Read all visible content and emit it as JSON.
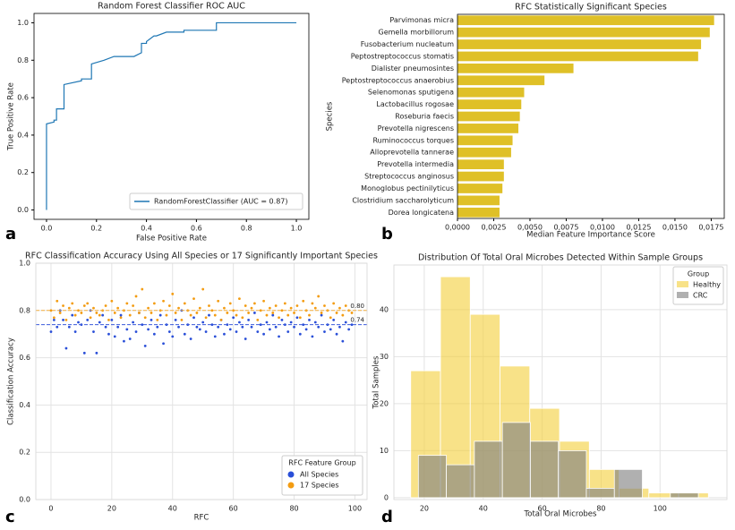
{
  "chart_data": [
    {
      "type": "line",
      "title": "Random Forest Classifier ROC AUC",
      "xlabel": "False Positive Rate",
      "ylabel": "True Positive Rate",
      "panel_label": "a",
      "xlim": [
        -0.05,
        1.05
      ],
      "ylim": [
        -0.05,
        1.05
      ],
      "xticks": [
        {
          "value": 0,
          "label": "0.0"
        },
        0.2,
        0.4,
        0.6,
        0.8,
        {
          "value": 1,
          "label": "1.0"
        }
      ],
      "yticks": [
        {
          "value": 0,
          "label": "0.0"
        },
        0.2,
        0.4,
        0.6,
        0.8,
        {
          "value": 1,
          "label": "1.0"
        }
      ],
      "grid": false,
      "legend": "lower right",
      "series": [
        {
          "name": "RandomForestClassifier (AUC = 0.87)",
          "color": "#1f77b4",
          "x": [
            0,
            0,
            0.03,
            0.03,
            0.04,
            0.04,
            0.07,
            0.07,
            0.14,
            0.14,
            0.18,
            0.18,
            0.23,
            0.27,
            0.35,
            0.38,
            0.38,
            0.4,
            0.4,
            0.43,
            0.44,
            0.48,
            0.48,
            0.55,
            0.55,
            0.68,
            0.68,
            1.0
          ],
          "values": [
            0,
            0.46,
            0.47,
            0.48,
            0.48,
            0.54,
            0.54,
            0.67,
            0.69,
            0.7,
            0.7,
            0.78,
            0.8,
            0.82,
            0.82,
            0.84,
            0.89,
            0.89,
            0.9,
            0.93,
            0.93,
            0.95,
            0.95,
            0.95,
            0.96,
            0.96,
            1.0,
            1.0
          ]
        }
      ]
    },
    {
      "type": "hbar",
      "title": "RFC Statistically Significant Species",
      "xlabel": "Median Feature Importance Score",
      "ylabel": "Species",
      "panel_label": "b",
      "categories": [
        "Parvimonas micra",
        "Gemella morbillorum",
        "Fusobacterium nucleatum",
        "Peptostreptococcus stomatis",
        "Dialister pneumosintes",
        "Peptostreptococcus anaerobius",
        "Selenomonas sputigena",
        "Lactobacillus rogosae",
        "Roseburia faecis",
        "Prevotella nigrescens",
        "Ruminococcus torques",
        "Alloprevotella tannerae",
        "Prevotella intermedia",
        "Streptococcus anginosus",
        "Monoglobus pectinilyticus",
        "Clostridium saccharolyticum",
        "Dorea longicatena"
      ],
      "values": [
        0.0177,
        0.0174,
        0.0168,
        0.0166,
        0.008,
        0.006,
        0.0046,
        0.0044,
        0.0043,
        0.0042,
        0.0038,
        0.0037,
        0.0032,
        0.0032,
        0.0031,
        0.0029,
        0.0029
      ],
      "color": "#dfc027",
      "xlim": [
        0,
        0.0184
      ],
      "grid": false,
      "xticks": [
        {
          "value": 0,
          "label": "0,0000"
        },
        {
          "value": 0.0025,
          "label": "0,0025"
        },
        {
          "value": 0.005,
          "label": "0,0050"
        },
        {
          "value": 0.0075,
          "label": "0,0075"
        },
        {
          "value": 0.01,
          "label": "0,0100"
        },
        {
          "value": 0.0125,
          "label": "0,0125"
        },
        {
          "value": 0.015,
          "label": "0,0150"
        },
        {
          "value": 0.0175,
          "label": "0,0175"
        }
      ]
    },
    {
      "type": "scatter",
      "title": "RFC Classification Accuracy Using All Species or 17 Significantly Important Species",
      "xlabel": "RFC",
      "ylabel": "Classification Accuracy",
      "panel_label": "c",
      "xlim": [
        -5,
        104
      ],
      "ylim": [
        0,
        1.0
      ],
      "xticks": [
        0,
        20,
        40,
        60,
        80,
        100
      ],
      "yticks": [
        {
          "value": 0,
          "label": "0.0"
        },
        0.2,
        0.4,
        0.6,
        0.8,
        {
          "value": 1,
          "label": "1.0"
        }
      ],
      "grid": true,
      "legend": "lower right",
      "legend_title": "RFC Feature Group",
      "x": [
        0,
        1,
        2,
        3,
        4,
        5,
        6,
        7,
        8,
        9,
        10,
        11,
        12,
        13,
        14,
        15,
        16,
        17,
        18,
        19,
        20,
        21,
        22,
        23,
        24,
        25,
        26,
        27,
        28,
        29,
        30,
        31,
        32,
        33,
        34,
        35,
        36,
        37,
        38,
        39,
        40,
        41,
        42,
        43,
        44,
        45,
        46,
        47,
        48,
        49,
        50,
        51,
        52,
        53,
        54,
        55,
        56,
        57,
        58,
        59,
        60,
        61,
        62,
        63,
        64,
        65,
        66,
        67,
        68,
        69,
        70,
        71,
        72,
        73,
        74,
        75,
        76,
        77,
        78,
        79,
        80,
        81,
        82,
        83,
        84,
        85,
        86,
        87,
        88,
        89,
        90,
        91,
        92,
        93,
        94,
        95,
        96,
        97,
        98,
        99
      ],
      "series": [
        {
          "name": "All Species",
          "color": "#2a4fd8",
          "values": [
            0.71,
            0.76,
            0.73,
            0.8,
            0.76,
            0.64,
            0.73,
            0.78,
            0.71,
            0.75,
            0.74,
            0.62,
            0.76,
            0.8,
            0.71,
            0.62,
            0.75,
            0.78,
            0.73,
            0.7,
            0.76,
            0.69,
            0.73,
            0.78,
            0.67,
            0.72,
            0.68,
            0.75,
            0.71,
            0.79,
            0.74,
            0.65,
            0.72,
            0.76,
            0.7,
            0.73,
            0.78,
            0.66,
            0.74,
            0.71,
            0.69,
            0.76,
            0.73,
            0.8,
            0.7,
            0.74,
            0.68,
            0.77,
            0.73,
            0.72,
            0.75,
            0.71,
            0.78,
            0.74,
            0.69,
            0.73,
            0.76,
            0.7,
            0.74,
            0.72,
            0.77,
            0.71,
            0.75,
            0.73,
            0.68,
            0.76,
            0.73,
            0.79,
            0.71,
            0.74,
            0.7,
            0.75,
            0.72,
            0.78,
            0.73,
            0.69,
            0.76,
            0.74,
            0.71,
            0.75,
            0.73,
            0.77,
            0.7,
            0.74,
            0.72,
            0.76,
            0.69,
            0.75,
            0.73,
            0.78,
            0.71,
            0.74,
            0.72,
            0.76,
            0.7,
            0.73,
            0.67,
            0.75,
            0.72,
            0.74
          ]
        },
        {
          "name": "17 Species",
          "color": "#f39c12",
          "values": [
            0.8,
            0.77,
            0.84,
            0.79,
            0.82,
            0.76,
            0.81,
            0.83,
            0.78,
            0.8,
            0.79,
            0.82,
            0.83,
            0.77,
            0.81,
            0.79,
            0.78,
            0.8,
            0.82,
            0.76,
            0.84,
            0.79,
            0.81,
            0.77,
            0.8,
            0.83,
            0.78,
            0.82,
            0.86,
            0.79,
            0.89,
            0.77,
            0.81,
            0.79,
            0.83,
            0.76,
            0.8,
            0.84,
            0.78,
            0.82,
            0.87,
            0.79,
            0.81,
            0.76,
            0.83,
            0.8,
            0.78,
            0.85,
            0.79,
            0.81,
            0.89,
            0.77,
            0.82,
            0.8,
            0.78,
            0.84,
            0.76,
            0.81,
            0.79,
            0.83,
            0.8,
            0.78,
            0.85,
            0.77,
            0.82,
            0.79,
            0.81,
            0.83,
            0.76,
            0.8,
            0.84,
            0.78,
            0.81,
            0.79,
            0.82,
            0.77,
            0.8,
            0.83,
            0.78,
            0.81,
            0.79,
            0.82,
            0.77,
            0.84,
            0.8,
            0.78,
            0.83,
            0.81,
            0.86,
            0.79,
            0.82,
            0.8,
            0.77,
            0.83,
            0.79,
            0.81,
            0.78,
            0.82,
            0.8,
            0.79
          ]
        }
      ],
      "reference_lines": [
        {
          "value": 0.8,
          "value_label": "0.80",
          "color": "#f5b041"
        },
        {
          "value": 0.74,
          "value_label": "0.74",
          "color": "#3b5bdb"
        }
      ]
    },
    {
      "type": "histogram",
      "title": "Distribution Of Total Oral Microbes Detected Within Sample Groups",
      "xlabel": "Total Oral Microbes",
      "ylabel": "Total Samples",
      "panel_label": "d",
      "xlim": [
        9.7,
        122.7
      ],
      "ylim": [
        -0.4,
        49.5
      ],
      "xticks": [
        20,
        40,
        60,
        80,
        100
      ],
      "yticks": [
        0,
        10,
        20,
        30,
        40
      ],
      "grid": true,
      "legend": "upper right",
      "legend_title": "Group",
      "series": [
        {
          "name": "Healthy",
          "color": "#f4d03f",
          "bins": [
            15.4,
            25.5,
            35.6,
            45.7,
            55.8,
            65.9,
            76,
            86.1,
            96.2,
            106.3,
            116.4
          ],
          "values": [
            27,
            47,
            39,
            28,
            19,
            12,
            6,
            2,
            1,
            1
          ]
        },
        {
          "name": "CRC",
          "color": "#7f7f7f",
          "bins": [
            18,
            27.5,
            37,
            46.5,
            56,
            65.5,
            75,
            84.5,
            94,
            103.5,
            113
          ],
          "values": [
            9,
            7,
            12,
            16,
            12,
            10,
            2,
            6,
            0,
            1
          ]
        }
      ]
    }
  ]
}
